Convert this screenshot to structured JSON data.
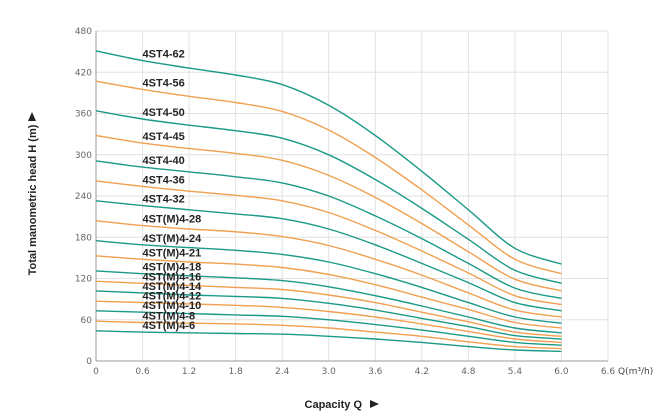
{
  "chart_data": {
    "type": "line",
    "xlabel": "Capacity  Q",
    "ylabel": "Total manometric head H (m)",
    "x_unit": "Q(m³/h)",
    "xlim": [
      0,
      6.6
    ],
    "ylim": [
      0,
      480
    ],
    "x_ticks": [
      "0",
      "0.6",
      "1.2",
      "1.8",
      "2.4",
      "3.0",
      "3.6",
      "4.2",
      "4.8",
      "5.4",
      "6.0",
      "6.6"
    ],
    "y_ticks": [
      "0",
      "60",
      "120",
      "180",
      "240",
      "300",
      "360",
      "420",
      "480"
    ],
    "grid": true,
    "x": [
      0,
      0.6,
      1.2,
      1.8,
      2.4,
      3.0,
      3.6,
      4.2,
      4.8,
      5.4,
      6.0
    ],
    "series": [
      {
        "name": "4ST4-62",
        "color": "#1a9a86",
        "values": [
          451,
          437,
          426,
          416,
          402,
          372,
          328,
          276,
          220,
          164,
          141
        ]
      },
      {
        "name": "4ST4-56",
        "color": "#f0a050",
        "values": [
          407,
          395,
          385,
          376,
          363,
          336,
          296,
          249,
          198,
          148,
          127
        ]
      },
      {
        "name": "4ST4-50",
        "color": "#1a9a86",
        "values": [
          364,
          352,
          343,
          335,
          324,
          300,
          264,
          222,
          177,
          132,
          113
        ]
      },
      {
        "name": "4ST4-45",
        "color": "#f0a050",
        "values": [
          328,
          317,
          309,
          302,
          292,
          270,
          238,
          200,
          159,
          119,
          102
        ]
      },
      {
        "name": "4ST4-40",
        "color": "#1a9a86",
        "values": [
          291,
          282,
          275,
          268,
          259,
          240,
          211,
          178,
          142,
          106,
          91
        ]
      },
      {
        "name": "4ST4-36",
        "color": "#f0a050",
        "values": [
          262,
          254,
          247,
          241,
          233,
          216,
          190,
          160,
          128,
          95,
          82
        ]
      },
      {
        "name": "4ST4-32",
        "color": "#1a9a86",
        "values": [
          233,
          226,
          220,
          214,
          207,
          192,
          169,
          142,
          114,
          85,
          73
        ]
      },
      {
        "name": "4ST(M)4-28",
        "color": "#f0a050",
        "values": [
          204,
          197,
          192,
          188,
          181,
          168,
          148,
          125,
          99,
          74,
          64
        ]
      },
      {
        "name": "4ST(M)4-24",
        "color": "#1a9a86",
        "values": [
          175,
          169,
          165,
          161,
          155,
          144,
          127,
          107,
          85,
          64,
          55
        ]
      },
      {
        "name": "4ST(M)4-21",
        "color": "#f0a050",
        "values": [
          153,
          148,
          144,
          141,
          136,
          126,
          111,
          93,
          75,
          56,
          48
        ]
      },
      {
        "name": "4ST(M)4-18",
        "color": "#1a9a86",
        "values": [
          131,
          127,
          124,
          121,
          117,
          108,
          95,
          80,
          64,
          48,
          41
        ]
      },
      {
        "name": "4ST(M)4-16",
        "color": "#f0a050",
        "values": [
          116,
          113,
          110,
          107,
          104,
          96,
          85,
          71,
          57,
          42,
          36
        ]
      },
      {
        "name": "4ST(M)4-14",
        "color": "#1a9a86",
        "values": [
          102,
          99,
          96,
          94,
          91,
          84,
          74,
          62,
          50,
          37,
          32
        ]
      },
      {
        "name": "4ST(M)4-12",
        "color": "#f0a050",
        "values": [
          87,
          85,
          83,
          81,
          78,
          72,
          64,
          54,
          43,
          32,
          27
        ]
      },
      {
        "name": "4ST(M)4-10",
        "color": "#1a9a86",
        "values": [
          73,
          71,
          69,
          67,
          65,
          60,
          53,
          45,
          36,
          27,
          23
        ]
      },
      {
        "name": "4ST(M)4-8",
        "color": "#f0a050",
        "values": [
          58,
          56,
          55,
          54,
          52,
          48,
          42,
          36,
          28,
          21,
          18
        ]
      },
      {
        "name": "4ST(M)4-6",
        "color": "#1a9a86",
        "values": [
          44,
          42,
          41,
          40,
          39,
          36,
          32,
          27,
          21,
          16,
          14
        ]
      }
    ]
  }
}
